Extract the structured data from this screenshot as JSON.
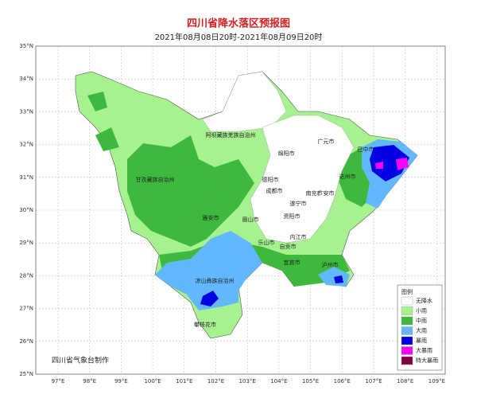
{
  "header": {
    "title": "四川省降水落区预报图",
    "subtitle": "2021年08月08日20时-2021年08月09日20时"
  },
  "lat_labels": [
    "35°N",
    "34°N",
    "33°N",
    "32°N",
    "31°N",
    "30°N",
    "29°N",
    "28°N",
    "27°N",
    "26°N",
    "25°N"
  ],
  "lon_labels": [
    "97°E",
    "98°E",
    "99°E",
    "100°E",
    "101°E",
    "102°E",
    "103°E",
    "104°E",
    "105°E",
    "106°E",
    "107°E",
    "108°E",
    "109°E"
  ],
  "places": [
    "阿坝藏族羌族自治州",
    "甘孜藏族自治州",
    "绵阳市",
    "广元市",
    "巴中市",
    "达州市",
    "南充市",
    "德阳市",
    "成都市",
    "遂宁市",
    "广安市",
    "雅安市",
    "眉山市",
    "资阳市",
    "内江市",
    "乐山市",
    "自贡市",
    "宜宾市",
    "泸州市",
    "凉山彝族自治州",
    "攀枝花市"
  ],
  "legend": {
    "title": "图例",
    "items": [
      {
        "label": "无降水",
        "color": "#ffffff"
      },
      {
        "label": "小雨",
        "color": "#a6f28f"
      },
      {
        "label": "中雨",
        "color": "#3dba3d"
      },
      {
        "label": "大雨",
        "color": "#61b8ff"
      },
      {
        "label": "暴雨",
        "color": "#0000e1"
      },
      {
        "label": "大暴雨",
        "color": "#fa00fa"
      },
      {
        "label": "特大暴雨",
        "color": "#800040"
      }
    ]
  },
  "credit": "四川省气象台制作"
}
